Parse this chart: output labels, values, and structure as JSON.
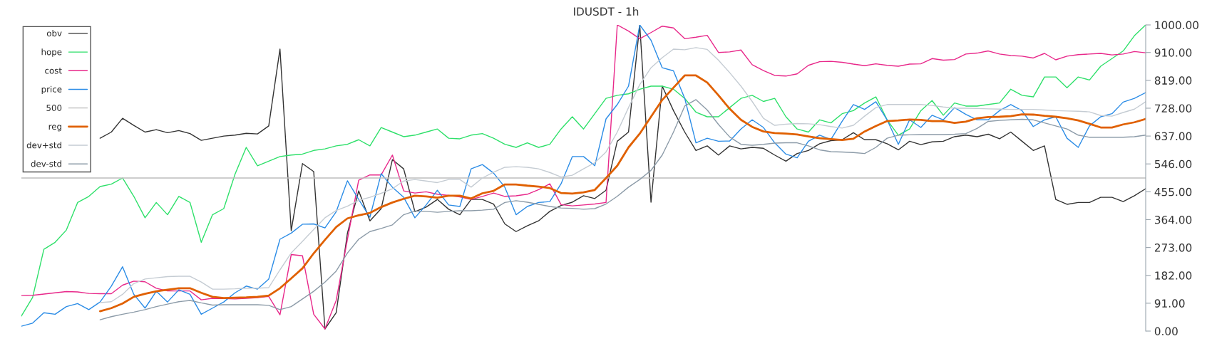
{
  "chart_data": {
    "type": "line",
    "title": "IDUSDT - 1h",
    "categories": [
      null,
      null,
      null,
      null,
      null,
      null,
      null,
      null,
      null,
      null,
      null,
      null,
      null,
      null,
      null,
      null,
      null,
      null,
      null,
      null,
      null,
      null,
      null,
      null,
      null,
      null,
      null,
      null,
      null,
      null,
      null,
      null,
      null,
      null,
      null,
      null,
      null,
      null,
      null,
      null,
      null,
      null,
      null,
      null,
      null,
      null,
      null,
      null,
      null,
      null,
      null,
      null,
      null,
      null,
      null,
      null,
      null,
      null,
      null,
      null,
      null,
      null,
      null,
      null,
      null,
      null,
      null,
      null,
      null,
      null,
      null,
      null,
      null,
      null,
      null,
      null,
      null,
      null,
      null,
      null,
      null,
      null,
      null,
      null,
      null,
      null,
      null,
      null,
      null,
      null,
      null,
      null,
      null,
      null,
      null,
      null,
      null,
      null,
      null,
      null,
      null
    ],
    "ylim": [
      0,
      1000
    ],
    "yticks": [
      {
        "value": 0,
        "label": "0.00"
      },
      {
        "value": 91,
        "label": "91.00"
      },
      {
        "value": 182,
        "label": "182.00"
      },
      {
        "value": 273,
        "label": "273.00"
      },
      {
        "value": 364,
        "label": "364.00"
      },
      {
        "value": 455,
        "label": "455.00"
      },
      {
        "value": 546,
        "label": "546.00"
      },
      {
        "value": 637,
        "label": "637.00"
      },
      {
        "value": 728,
        "label": "728.00"
      },
      {
        "value": 819,
        "label": "819.00"
      },
      {
        "value": 910,
        "label": "910.00"
      },
      {
        "value": 1000,
        "label": "1000.00"
      }
    ],
    "tick_labels": "y",
    "grid": false,
    "legend": "top left",
    "marker": "none",
    "line_style": "solid",
    "series": [
      {
        "name": "obv",
        "color": "#333333",
        "values": [
          null,
          null,
          null,
          null,
          null,
          null,
          null,
          630,
          650,
          695,
          672,
          650,
          658,
          648,
          655,
          645,
          623,
          630,
          637,
          640,
          646,
          644,
          670,
          921,
          328,
          547,
          521,
          7,
          60,
          320,
          458,
          360,
          400,
          560,
          530,
          390,
          405,
          430,
          398,
          380,
          430,
          430,
          415,
          350,
          325,
          344,
          360,
          391,
          410,
          421,
          442,
          433,
          460,
          620,
          650,
          1000,
          421,
          800,
          720,
          650,
          590,
          605,
          575,
          605,
          595,
          600,
          597,
          575,
          555,
          580,
          590,
          612,
          622,
          625,
          648,
          625,
          625,
          612,
          592,
          620,
          609,
          618,
          620,
          635,
          640,
          635,
          643,
          628,
          650,
          620,
          590,
          605,
          430,
          414,
          420,
          420,
          437,
          437,
          423,
          442,
          465
        ]
      },
      {
        "name": "hope",
        "color": "#2ee06a",
        "values": [
          49,
          110,
          267,
          290,
          330,
          420,
          440,
          472,
          480,
          500,
          440,
          370,
          420,
          380,
          440,
          420,
          290,
          380,
          400,
          512,
          600,
          540,
          555,
          570,
          575,
          578,
          590,
          595,
          605,
          610,
          625,
          605,
          665,
          650,
          635,
          640,
          650,
          660,
          630,
          628,
          640,
          645,
          630,
          610,
          600,
          615,
          600,
          610,
          660,
          700,
          660,
          710,
          760,
          770,
          775,
          790,
          800,
          800,
          790,
          760,
          715,
          700,
          700,
          730,
          760,
          770,
          750,
          760,
          700,
          660,
          650,
          690,
          680,
          710,
          720,
          745,
          765,
          690,
          640,
          660,
          720,
          753,
          705,
          745,
          735,
          735,
          740,
          745,
          790,
          770,
          765,
          830,
          830,
          795,
          830,
          820,
          865,
          890,
          915,
          965,
          1000
        ]
      },
      {
        "name": "cost",
        "color": "#e8288a",
        "values": [
          116,
          117,
          121,
          125,
          129,
          128,
          123,
          122,
          122,
          150,
          163,
          161,
          140,
          131,
          131,
          131,
          102,
          107,
          106,
          105,
          107,
          109,
          113,
          53,
          250,
          246,
          55,
          7,
          100,
          300,
          493,
          510,
          510,
          575,
          458,
          451,
          455,
          447,
          443,
          438,
          430,
          440,
          451,
          440,
          442,
          447,
          462,
          481,
          413,
          409,
          412,
          415,
          420,
          1000,
          980,
          955,
          975,
          996,
          990,
          955,
          960,
          966,
          910,
          912,
          918,
          870,
          851,
          835,
          833,
          840,
          868,
          880,
          881,
          878,
          872,
          867,
          873,
          868,
          865,
          872,
          873,
          890,
          885,
          887,
          905,
          908,
          915,
          905,
          900,
          898,
          892,
          907,
          886,
          898,
          903,
          905,
          907,
          902,
          905,
          913,
          909
        ]
      },
      {
        "name": "price",
        "color": "#2b8ce6",
        "values": [
          16,
          26,
          60,
          55,
          80,
          90,
          70,
          95,
          147,
          210,
          120,
          75,
          130,
          95,
          135,
          120,
          55,
          75,
          95,
          125,
          147,
          137,
          170,
          300,
          320,
          349,
          350,
          337,
          390,
          491,
          430,
          372,
          514,
          470,
          437,
          370,
          412,
          460,
          412,
          407,
          530,
          544,
          516,
          470,
          380,
          407,
          420,
          423,
          481,
          570,
          570,
          540,
          693,
          740,
          800,
          1000,
          950,
          860,
          850,
          760,
          615,
          630,
          620,
          621,
          660,
          690,
          665,
          615,
          578,
          566,
          620,
          640,
          626,
          685,
          740,
          724,
          749,
          690,
          610,
          690,
          665,
          705,
          690,
          730,
          708,
          690,
          690,
          720,
          740,
          720,
          668,
          690,
          700,
          630,
          600,
          670,
          700,
          710,
          748,
          760,
          779
        ]
      },
      {
        "name": "500",
        "color": "#bdbdbd",
        "values": [
          500,
          500,
          500,
          500,
          500,
          500,
          500,
          500,
          500,
          500,
          500,
          500,
          500,
          500,
          500,
          500,
          500,
          500,
          500,
          500,
          500,
          500,
          500,
          500,
          500,
          500,
          500,
          500,
          500,
          500,
          500,
          500,
          500,
          500,
          500,
          500,
          500,
          500,
          500,
          500,
          500,
          500,
          500,
          500,
          500,
          500,
          500,
          500,
          500,
          500,
          500,
          500,
          500,
          500,
          500,
          500,
          500,
          500,
          500,
          500,
          500,
          500,
          500,
          500,
          500,
          500,
          500,
          500,
          500,
          500,
          500,
          500,
          500,
          500,
          500,
          500,
          500,
          500,
          500,
          500,
          500,
          500,
          500,
          500,
          500,
          500,
          500,
          500,
          500,
          500,
          500,
          500,
          500,
          500,
          500,
          500,
          500,
          500,
          500,
          500,
          500
        ]
      },
      {
        "name": "reg",
        "color": "#e06000",
        "values": [
          null,
          null,
          null,
          null,
          null,
          null,
          null,
          65,
          75,
          90,
          112,
          122,
          130,
          135,
          140,
          140,
          125,
          112,
          108,
          109,
          110,
          112,
          116,
          140,
          172,
          205,
          254,
          298,
          340,
          368,
          378,
          386,
          405,
          420,
          432,
          442,
          440,
          436,
          442,
          442,
          433,
          450,
          458,
          479,
          479,
          475,
          472,
          467,
          451,
          449,
          453,
          461,
          500,
          540,
          600,
          645,
          700,
          755,
          795,
          835,
          835,
          812,
          770,
          726,
          690,
          667,
          652,
          647,
          645,
          642,
          636,
          630,
          627,
          624,
          628,
          652,
          670,
          686,
          688,
          691,
          690,
          686,
          686,
          680,
          684,
          695,
          699,
          700,
          702,
          708,
          707,
          703,
          700,
          695,
          688,
          677,
          665,
          665,
          675,
          682,
          693
        ]
      },
      {
        "name": "dev+std",
        "color": "#c5ccd3",
        "values": [
          null,
          null,
          null,
          null,
          null,
          null,
          null,
          93,
          96,
          120,
          155,
          170,
          174,
          178,
          179,
          179,
          160,
          137,
          137,
          138,
          140,
          140,
          142,
          200,
          255,
          293,
          332,
          370,
          394,
          408,
          427,
          437,
          450,
          465,
          490,
          495,
          490,
          485,
          495,
          495,
          470,
          500,
          519,
          535,
          537,
          535,
          530,
          518,
          503,
          509,
          530,
          550,
          585,
          650,
          730,
          805,
          860,
          893,
          921,
          919,
          926,
          920,
          885,
          844,
          800,
          750,
          695,
          672,
          676,
          678,
          677,
          674,
          668,
          663,
          672,
          702,
          730,
          740,
          740,
          740,
          740,
          737,
          732,
          728,
          728,
          727,
          726,
          725,
          724,
          724,
          724,
          722,
          720,
          719,
          718,
          716,
          704,
          702,
          714,
          725,
          749
        ]
      },
      {
        "name": "dev-std",
        "color": "#8c9ba8",
        "values": [
          null,
          null,
          null,
          null,
          null,
          null,
          null,
          37,
          47,
          55,
          62,
          70,
          80,
          88,
          96,
          100,
          92,
          85,
          86,
          86,
          86,
          86,
          84,
          70,
          80,
          105,
          130,
          160,
          196,
          255,
          300,
          325,
          335,
          347,
          380,
          392,
          391,
          388,
          391,
          393,
          393,
          395,
          398,
          420,
          426,
          421,
          414,
          407,
          402,
          401,
          398,
          400,
          415,
          440,
          470,
          495,
          525,
          575,
          650,
          735,
          756,
          722,
          675,
          634,
          610,
          607,
          610,
          614,
          615,
          615,
          605,
          592,
          586,
          585,
          583,
          580,
          600,
          630,
          640,
          641,
          642,
          642,
          642,
          643,
          645,
          662,
          685,
          688,
          690,
          692,
          690,
          680,
          670,
          660,
          640,
          633,
          633,
          633,
          633,
          635,
          640
        ]
      }
    ]
  }
}
